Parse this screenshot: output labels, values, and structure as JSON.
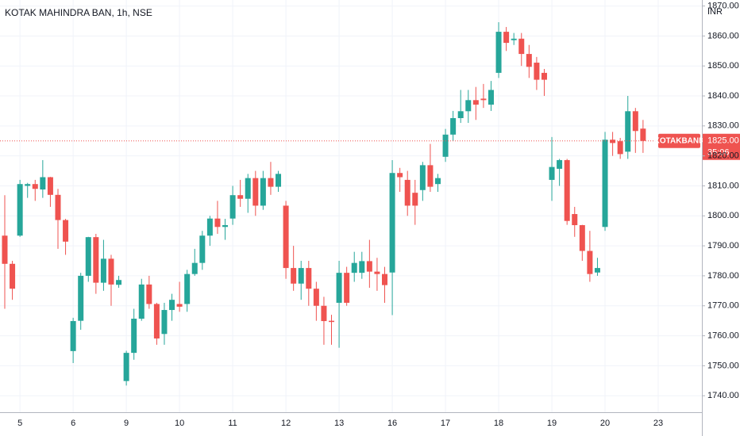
{
  "chart_data": {
    "type": "candlestick",
    "title": "KOTAK MAHINDRA BAN, 1h, NSE",
    "currency": "INR",
    "symbol": "KOTAKBANK",
    "countdown": "35:06",
    "last_price": {
      "value": 1825,
      "label": "1825.00"
    },
    "up_color": "#26a69a",
    "down_color": "#ef5350",
    "grid": true,
    "categories": [
      null,
      null,
      "5",
      null,
      null,
      null,
      null,
      null,
      null,
      "6",
      null,
      null,
      null,
      null,
      null,
      null,
      "9",
      null,
      null,
      null,
      null,
      null,
      null,
      "10",
      null,
      null,
      null,
      null,
      null,
      null,
      "11",
      null,
      null,
      null,
      null,
      null,
      null,
      "12",
      null,
      null,
      null,
      null,
      null,
      null,
      "13",
      null,
      null,
      null,
      null,
      null,
      null,
      "16",
      null,
      null,
      null,
      null,
      null,
      null,
      "17",
      null,
      null,
      null,
      null,
      null,
      null,
      "18",
      null,
      null,
      null,
      null,
      null,
      null,
      "19",
      null,
      null,
      null,
      null,
      null,
      null,
      "20",
      null,
      null,
      null,
      null,
      null,
      null,
      "23"
    ],
    "open": [
      1793.4,
      1784,
      1793.4,
      1810,
      1810.6,
      1808.8,
      1812.9,
      1807,
      1798.6,
      1754.9,
      1765,
      1780,
      1792.9,
      1777.7,
      1785.7,
      1777,
      1744.9,
      1754.3,
      1765.7,
      1777.1,
      1770.6,
      1760.6,
      1768.6,
      1770.6,
      1770.6,
      1780.6,
      1784.3,
      1793.4,
      1799.1,
      1796.3,
      1799.1,
      1806.9,
      1805.7,
      1812.6,
      1803.4,
      1812.6,
      1809.7,
      1803.4,
      1782.6,
      1777.4,
      1782.6,
      1775.7,
      1770,
      1765,
      1771,
      1781,
      1781,
      1781,
      1784.9,
      1781.4,
      1780.6,
      1781.1,
      1814.3,
      1812,
      1807.7,
      1808.6,
      1816.9,
      1810.6,
      1819.7,
      1827.1,
      1832.6,
      1834.9,
      1838.6,
      1839.1,
      1837.1,
      1847.7,
      1861.4,
      1858.6,
      1859.1,
      1854,
      1851.1,
      1847.7,
      1812,
      1815.7,
      1818.6,
      1800.6,
      1796.9,
      1788.3,
      1781.1,
      1796.3,
      1825.4,
      1824.9,
      1821.4,
      1834.9,
      1829.1,
      null,
      null
    ],
    "high": [
      1806.9,
      1785,
      1812,
      1811,
      1812,
      1818.6,
      1813,
      1809,
      1799,
      1766,
      1781,
      1793,
      1794,
      1792,
      1787,
      1780,
      1755,
      1769,
      1779,
      1780,
      1771,
      1771,
      1774,
      1778,
      1782,
      1789,
      1795,
      1800,
      1805,
      1799,
      1810,
      1812,
      1814,
      1815,
      1815,
      1818,
      1815,
      1805,
      1790,
      1785,
      1785,
      1778,
      1773,
      1767,
      1785,
      1783,
      1788,
      1788,
      1792,
      1786,
      1783,
      1818.6,
      1816,
      1815,
      1812,
      1818,
      1824,
      1814,
      1829,
      1835,
      1842,
      1842,
      1843,
      1844,
      1845,
      1864.6,
      1863,
      1861,
      1861,
      1857,
      1853,
      1849,
      1826.3,
      1819,
      1819,
      1803,
      1797,
      1795,
      1786,
      1828,
      1828,
      1826,
      1840,
      1836,
      1832,
      null,
      null
    ],
    "low": [
      1769,
      1772,
      1793,
      1806,
      1805,
      1806,
      1803,
      1789,
      1787,
      1750.9,
      1762,
      1778,
      1774,
      1775,
      1770,
      1776,
      1743.4,
      1752,
      1765,
      1769,
      1757,
      1757,
      1765,
      1768,
      1768,
      1780,
      1782,
      1790,
      1794,
      1792,
      1797,
      1803,
      1801,
      1800,
      1802,
      1807,
      1808,
      1779,
      1775,
      1772,
      1770,
      1765,
      1757,
      1757,
      1756,
      1770,
      1778,
      1779,
      1776,
      1775,
      1771,
      1766.9,
      1808,
      1800,
      1797,
      1805,
      1808,
      1808,
      1818,
      1825,
      1831,
      1831,
      1832,
      1836,
      1835,
      1846,
      1855,
      1857,
      1850,
      1846,
      1842,
      1840,
      1805,
      1810,
      1797,
      1793,
      1785,
      1778,
      1780,
      1795,
      1820,
      1819,
      1819,
      1821,
      1821,
      null,
      null
    ],
    "close": [
      1784,
      1775.7,
      1810.6,
      1810.6,
      1809,
      1812.9,
      1807,
      1798.6,
      1791.4,
      1764.9,
      1780,
      1792.9,
      1777.7,
      1785.7,
      1777.1,
      1778.6,
      1754.3,
      1765.7,
      1777.1,
      1770.6,
      1759.1,
      1768.6,
      1772,
      1769.7,
      1780.6,
      1784.3,
      1793.4,
      1799.1,
      1796.3,
      1796.9,
      1806.9,
      1805.7,
      1812.6,
      1803.4,
      1812.6,
      1809.7,
      1814,
      1782.6,
      1777.4,
      1782.6,
      1775.7,
      1770,
      1764.9,
      1764.6,
      1781,
      1771,
      1784.3,
      1784.9,
      1781.4,
      1780.6,
      1776.9,
      1814.3,
      1812.9,
      1803.4,
      1803.4,
      1816.9,
      1809.7,
      1812.6,
      1827.1,
      1832.6,
      1834.9,
      1838.6,
      1837.1,
      1838.6,
      1842,
      1861.4,
      1857.7,
      1859.1,
      1854,
      1849.7,
      1845.4,
      1845.4,
      1816.3,
      1818.6,
      1798.3,
      1796.9,
      1788.3,
      1780.6,
      1782.6,
      1825.4,
      1824.3,
      1820.6,
      1834.9,
      1828.3,
      1825,
      null,
      null
    ],
    "ylim": [
      1734.5,
      1872
    ],
    "yticks": [
      {
        "value": 1740,
        "label": "1740.00"
      },
      {
        "value": 1750,
        "label": "1750.00"
      },
      {
        "value": 1760,
        "label": "1760.00"
      },
      {
        "value": 1770,
        "label": "1770.00"
      },
      {
        "value": 1780,
        "label": "1780.00"
      },
      {
        "value": 1790,
        "label": "1790.00"
      },
      {
        "value": 1800,
        "label": "1800.00"
      },
      {
        "value": 1810,
        "label": "1810.00"
      },
      {
        "value": 1820,
        "label": "1820.00"
      },
      {
        "value": 1830,
        "label": "1830.00"
      },
      {
        "value": 1840,
        "label": "1840.00"
      },
      {
        "value": 1850,
        "label": "1850.00"
      },
      {
        "value": 1860,
        "label": "1860.00"
      },
      {
        "value": 1870,
        "label": "1870.00"
      }
    ]
  }
}
